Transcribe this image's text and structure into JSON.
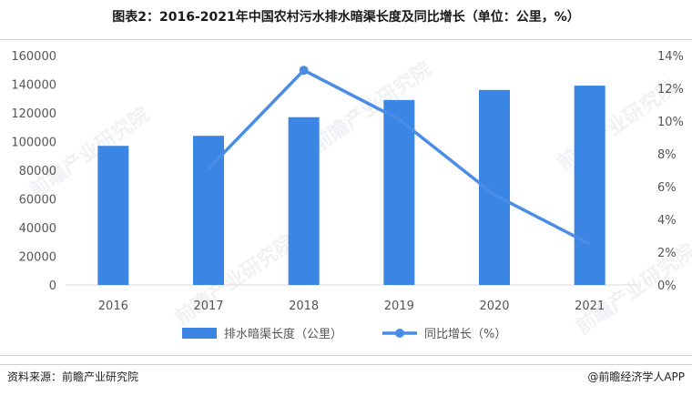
{
  "title": "图表2：2016-2021年中国农村污水排水暗渠长度及同比增长（单位：公里，%）",
  "source": "资料来源：前瞻产业研究院",
  "credit": "@前瞻经济学人APP",
  "watermark": "前瞻产业研究院",
  "colors": {
    "bar": "#3b86e4",
    "line": "#4a8de6",
    "axis_text": "#555555",
    "grid": "#d9d9d9"
  },
  "chart_data": {
    "type": "bar",
    "categories": [
      "2016",
      "2017",
      "2018",
      "2019",
      "2020",
      "2021"
    ],
    "series": [
      {
        "name": "排水暗渠长度（公里）",
        "type": "bar",
        "axis": "left",
        "values": [
          97000,
          104000,
          117000,
          129000,
          136000,
          139000
        ]
      },
      {
        "name": "同比增长（%）",
        "type": "line",
        "axis": "right",
        "values": [
          null,
          7.1,
          13.1,
          10.1,
          5.5,
          2.5
        ]
      }
    ],
    "y_left": {
      "min": 0,
      "max": 160000,
      "ticks": [
        "0",
        "20000",
        "40000",
        "60000",
        "80000",
        "100000",
        "120000",
        "140000",
        "160000"
      ]
    },
    "y_right": {
      "min": 0,
      "max": 14,
      "ticks": [
        "0%",
        "2%",
        "4%",
        "6%",
        "8%",
        "10%",
        "12%",
        "14%"
      ]
    },
    "legend": "bottom",
    "grid": false
  }
}
